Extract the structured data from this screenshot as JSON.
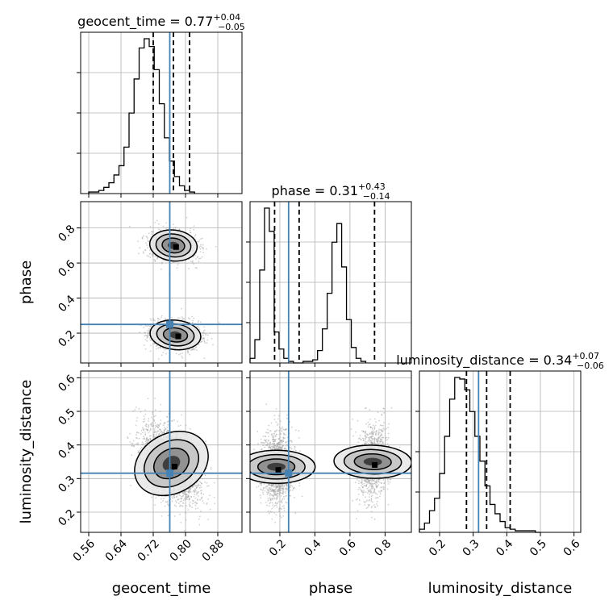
{
  "chart_data": {
    "type": "corner",
    "parameters": [
      {
        "name": "geocent_time",
        "median": 0.77,
        "plus": "+0.04",
        "minus": "−0.05",
        "title_main": "geocent_time = 0.77",
        "range": [
          0.54,
          0.94
        ],
        "ticks": [
          0.56,
          0.64,
          0.72,
          0.8,
          0.88
        ],
        "tick_labels": [
          "0.56",
          "0.64",
          "0.72",
          "0.80",
          "0.88"
        ],
        "quantiles": [
          0.72,
          0.77,
          0.81
        ],
        "truth": 0.761
      },
      {
        "name": "phase",
        "median": 0.31,
        "plus": "+0.43",
        "minus": "−0.14",
        "title_main": "phase = 0.31",
        "range": [
          0.03,
          0.95
        ],
        "ticks": [
          0.2,
          0.4,
          0.6,
          0.8
        ],
        "tick_labels": [
          "0.2",
          "0.4",
          "0.6",
          "0.8"
        ],
        "quantiles": [
          0.17,
          0.31,
          0.74
        ],
        "truth": 0.25
      },
      {
        "name": "luminosity_distance",
        "median": 0.34,
        "plus": "+0.07",
        "minus": "−0.06",
        "title_main": "luminosity_distance = 0.34",
        "range": [
          0.14,
          0.62
        ],
        "ticks": [
          0.2,
          0.3,
          0.4,
          0.5,
          0.6
        ],
        "tick_labels": [
          "0.2",
          "0.3",
          "0.4",
          "0.5",
          "0.6"
        ],
        "quantiles": [
          0.28,
          0.34,
          0.41
        ],
        "truth": 0.316
      }
    ],
    "hist_geocent_time": {
      "edges_start": 0.56,
      "bin_width": 0.0125,
      "counts": [
        1,
        1,
        2,
        4,
        7,
        12,
        18,
        30,
        52,
        74,
        94,
        100,
        95,
        80,
        58,
        36,
        21,
        11,
        5,
        2,
        1
      ]
    },
    "hist_phase": {
      "edges_start": 0.03,
      "bin_width": 0.0275,
      "counts": [
        3,
        15,
        60,
        100,
        85,
        20,
        9,
        3,
        1,
        0,
        0,
        1,
        1,
        2,
        8,
        22,
        45,
        78,
        90,
        62,
        28,
        10,
        3,
        1
      ]
    },
    "hist_luminosity_distance": {
      "edges_start": 0.14,
      "bin_width": 0.015,
      "counts": [
        2,
        6,
        14,
        22,
        38,
        62,
        86,
        100,
        99,
        92,
        78,
        62,
        46,
        30,
        18,
        12,
        7,
        3,
        2,
        1,
        1,
        1,
        1,
        0
      ]
    },
    "joint_phase_vs_geocent": {
      "modes": [
        {
          "cx": 0.77,
          "cy": 0.7,
          "sx": 0.028,
          "sy": 0.042,
          "rho": -0.1,
          "w": 0.46
        },
        {
          "cx": 0.775,
          "cy": 0.19,
          "sx": 0.03,
          "sy": 0.04,
          "rho": -0.12,
          "w": 0.54
        }
      ]
    },
    "joint_lum_vs_geocent": {
      "modes": [
        {
          "cx": 0.765,
          "cy": 0.345,
          "sx": 0.035,
          "sy": 0.055,
          "rho": -0.45,
          "w": 1.0
        }
      ]
    },
    "joint_lum_vs_phase": {
      "modes": [
        {
          "cx": 0.18,
          "cy": 0.335,
          "sx": 0.045,
          "sy": 0.055,
          "rho": 0.0,
          "w": 0.54
        },
        {
          "cx": 0.73,
          "cy": 0.35,
          "sx": 0.045,
          "sy": 0.055,
          "rho": 0.05,
          "w": 0.46
        }
      ]
    },
    "colors": {
      "truth": "#4682b4",
      "hist": "#000000",
      "grid": "#b0b0b0",
      "points": "#9a9a9a"
    },
    "grid": true
  }
}
